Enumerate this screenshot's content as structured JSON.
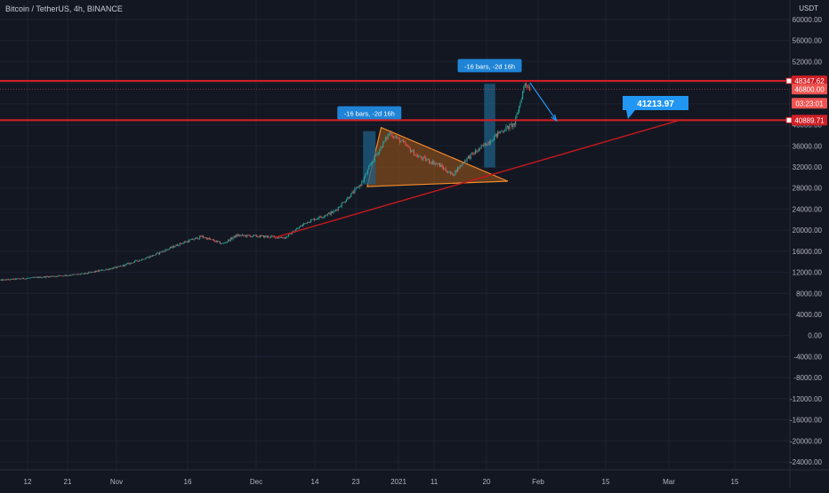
{
  "header": {
    "title": "Bitcoin / TetherUS, 4h, BINANCE",
    "currency": "USDT"
  },
  "colors": {
    "background": "#131722",
    "grid": "#1e2230",
    "axis_text": "#b2b5be",
    "up": "#26a69a",
    "down": "#ef5350",
    "level_line": "#d01f25",
    "trend_line": "#c2191e",
    "triangle_fill": "#a65a1a",
    "triangle_stroke": "#f08b2b",
    "measure_fill": "#1f5f86",
    "callout": "#2196f3"
  },
  "chart_data": {
    "type": "candlestick",
    "title": "Bitcoin / TetherUS, 4h, BINANCE",
    "x_axis": {
      "tick_labels": [
        "12",
        "21",
        "Nov",
        "16",
        "Dec",
        "14",
        "23",
        "2021",
        "11",
        "20",
        "Feb",
        "15",
        "Mar",
        "15"
      ]
    },
    "y_axis": {
      "range": [
        -25500,
        63200
      ],
      "tick_values": [
        60000,
        56000,
        52000,
        48000,
        44000,
        40000,
        36000,
        32000,
        28000,
        24000,
        20000,
        16000,
        12000,
        8000,
        4000,
        0,
        -4000,
        -8000,
        -12000,
        -16000,
        -20000,
        -24000
      ],
      "tick_labels": [
        "60000.00",
        "56000.00",
        "52000.00",
        "48000.00",
        "44000.00",
        "40000.00",
        "36000.00",
        "32000.00",
        "28000.00",
        "24000.00",
        "20000.00",
        "16000.00",
        "12000.00",
        "8000.00",
        "4000.00",
        "0.00",
        "-4000.00",
        "-8000.00",
        "-12000.00",
        "-16000.00",
        "-20000.00",
        "-24000.00"
      ]
    },
    "price_anchors": [
      {
        "t": 0,
        "p": 10500
      },
      {
        "t": 5,
        "p": 11000
      },
      {
        "t": 12,
        "p": 11700
      },
      {
        "t": 17,
        "p": 13000
      },
      {
        "t": 22,
        "p": 15200
      },
      {
        "t": 26,
        "p": 17500
      },
      {
        "t": 29,
        "p": 18800
      },
      {
        "t": 32,
        "p": 17400
      },
      {
        "t": 34,
        "p": 19000
      },
      {
        "t": 38,
        "p": 18800
      },
      {
        "t": 41,
        "p": 18600
      },
      {
        "t": 44,
        "p": 21500
      },
      {
        "t": 48,
        "p": 23500
      },
      {
        "t": 51,
        "p": 27500
      },
      {
        "t": 52,
        "p": 29000
      },
      {
        "t": 53.5,
        "p": 33000
      },
      {
        "t": 56,
        "p": 38500
      },
      {
        "t": 58,
        "p": 36500
      },
      {
        "t": 60,
        "p": 34000
      },
      {
        "t": 63,
        "p": 32500
      },
      {
        "t": 65,
        "p": 30500
      },
      {
        "t": 67,
        "p": 33500
      },
      {
        "t": 70,
        "p": 36500
      },
      {
        "t": 72,
        "p": 38800
      },
      {
        "t": 74,
        "p": 40200
      },
      {
        "t": 75.5,
        "p": 48100
      },
      {
        "t": 76.2,
        "p": 46800
      }
    ],
    "horizontal_levels": [
      {
        "value": 48347.62,
        "label": "48347.62"
      },
      {
        "value": 40889.71,
        "label": "40889.71"
      }
    ],
    "trendline": {
      "from": {
        "t": 39.5,
        "p": 18600
      },
      "to": {
        "t": 98,
        "p": 41000
      }
    },
    "triangle": [
      {
        "t": 54.8,
        "p": 39500
      },
      {
        "t": 52.8,
        "p": 28300
      },
      {
        "t": 73,
        "p": 29300
      }
    ],
    "measurements": [
      {
        "label": "-16 bars, -2d 16h",
        "t0": 52.2,
        "t1": 54,
        "p_top": 38800,
        "p_bottom": 28700
      },
      {
        "label": "-16 bars, -2d 16h",
        "t0": 69.6,
        "t1": 71.2,
        "p_top": 47800,
        "p_bottom": 31900
      }
    ],
    "projection": {
      "from": {
        "t": 76.2,
        "p": 48000
      },
      "to": {
        "t": 80,
        "p": 40800
      },
      "label": "41213.97"
    },
    "price_tags": [
      {
        "value": 48347.62,
        "label": "48347.62",
        "type": "level"
      },
      {
        "value": 46800,
        "label": "46800.00",
        "type": "last"
      },
      {
        "value": 44100,
        "label": "03:23:01",
        "type": "timer"
      },
      {
        "value": 40889.71,
        "label": "40889.71",
        "type": "level"
      }
    ]
  }
}
